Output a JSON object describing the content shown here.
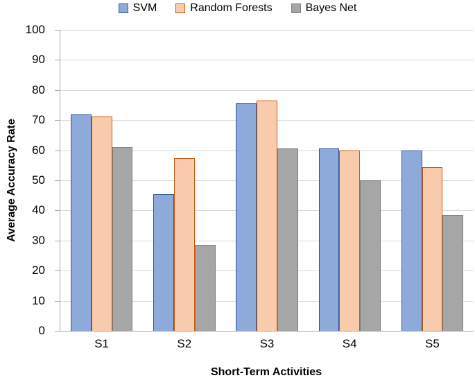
{
  "chart_data": {
    "type": "bar",
    "title": "",
    "categories": [
      "S1",
      "S2",
      "S3",
      "S4",
      "S5"
    ],
    "series": [
      {
        "name": "SVM",
        "fill": "#8EAADB",
        "border": "#2F5597",
        "values": [
          71.9,
          45.4,
          75.6,
          60.5,
          59.9
        ]
      },
      {
        "name": "Random Forests",
        "fill": "#F8CBAD",
        "border": "#C55A11",
        "values": [
          71.1,
          57.4,
          76.4,
          59.8,
          54.4
        ]
      },
      {
        "name": "Bayes Net",
        "fill": "#A6A6A6",
        "border": "#7F7F7F",
        "values": [
          61.0,
          28.5,
          60.5,
          50.1,
          38.5
        ]
      }
    ],
    "xlabel": "Short-Term Activities",
    "ylabel": "Average Accuracy Rate",
    "ylim": [
      0,
      100
    ],
    "ytick_step": 10,
    "legend_position": "top",
    "grid": true,
    "gridline_color": "#D9D9D9",
    "axis_color": "#A6A6A6",
    "text_color": "#000000"
  }
}
